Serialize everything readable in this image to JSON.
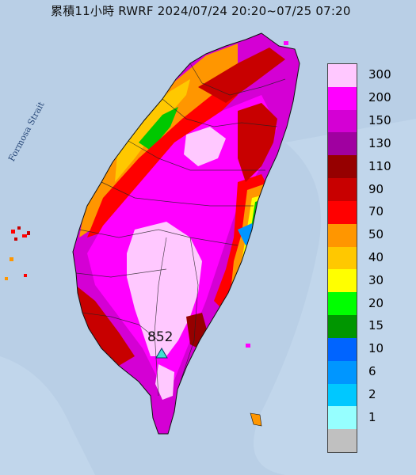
{
  "title": "累積11小時 RWRF 2024/07/24 20:20~07/25 07:20",
  "sea_label": "Formosa Strait",
  "peak": {
    "value": "852",
    "marker": "triangle-marker-icon"
  },
  "legend": {
    "items": [
      {
        "label": "300",
        "color": "#ffc8ff"
      },
      {
        "label": "200",
        "color": "#ff00ff"
      },
      {
        "label": "150",
        "color": "#d400d4"
      },
      {
        "label": "130",
        "color": "#a000a0"
      },
      {
        "label": "110",
        "color": "#960000"
      },
      {
        "label": "90",
        "color": "#c80000"
      },
      {
        "label": "70",
        "color": "#ff0000"
      },
      {
        "label": "50",
        "color": "#ff9600"
      },
      {
        "label": "40",
        "color": "#ffc800"
      },
      {
        "label": "30",
        "color": "#ffff00"
      },
      {
        "label": "20",
        "color": "#00ff00"
      },
      {
        "label": "15",
        "color": "#009600"
      },
      {
        "label": "10",
        "color": "#0064ff"
      },
      {
        "label": "6",
        "color": "#0096ff"
      },
      {
        "label": "2",
        "color": "#00c8ff"
      },
      {
        "label": "1",
        "color": "#96ffff"
      },
      {
        "label": "",
        "color": "#c0c0c0"
      }
    ]
  }
}
